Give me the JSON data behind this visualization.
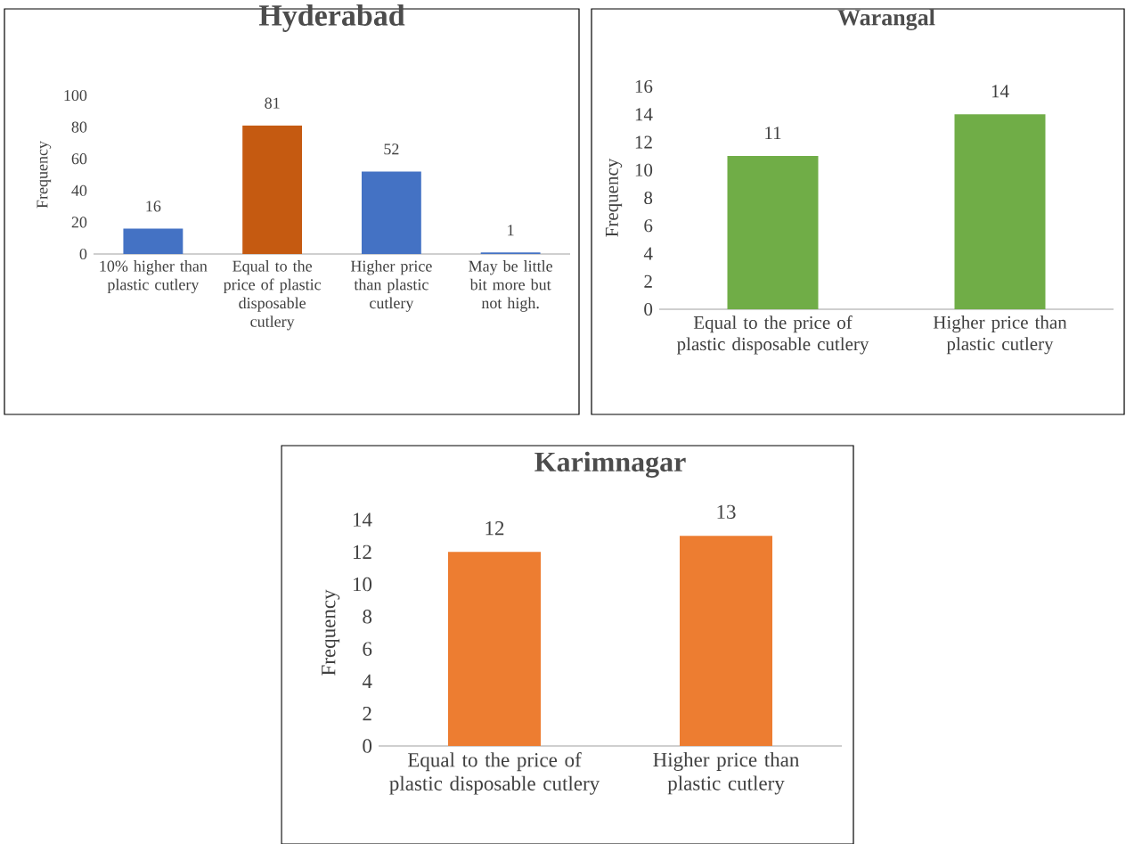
{
  "chart_data": [
    {
      "type": "bar",
      "title": "Hyderabad",
      "ylabel": "Frequency",
      "categories": [
        "10% higher than plastic cutlery",
        "Equal to the price of plastic disposable cutlery",
        "Higher price than plastic cutlery",
        "May be little bit more but not high."
      ],
      "values": [
        16,
        81,
        52,
        1
      ],
      "colors": [
        "#4472c4",
        "#c55a11",
        "#4472c4",
        "#4472c4"
      ],
      "ylim": [
        0,
        100
      ],
      "yticks": [
        0,
        20,
        40,
        60,
        80,
        100
      ],
      "data_labels": true
    },
    {
      "type": "bar",
      "title": "Warangal",
      "ylabel": "Frequency",
      "categories": [
        "Equal to the price of plastic disposable cutlery",
        "Higher price than plastic cutlery"
      ],
      "values": [
        11,
        14
      ],
      "colors": [
        "#70ad47",
        "#70ad47"
      ],
      "ylim": [
        0,
        16
      ],
      "yticks": [
        0,
        2,
        4,
        6,
        8,
        10,
        12,
        14,
        16
      ],
      "data_labels": true
    },
    {
      "type": "bar",
      "title": "Karimnagar",
      "ylabel": "Frequency",
      "categories": [
        "Equal to the price of plastic disposable cutlery",
        "Higher price than plastic cutlery"
      ],
      "values": [
        12,
        13
      ],
      "colors": [
        "#ed7d31",
        "#ed7d31"
      ],
      "ylim": [
        0,
        14
      ],
      "yticks": [
        0,
        2,
        4,
        6,
        8,
        10,
        12,
        14
      ],
      "data_labels": true
    }
  ]
}
